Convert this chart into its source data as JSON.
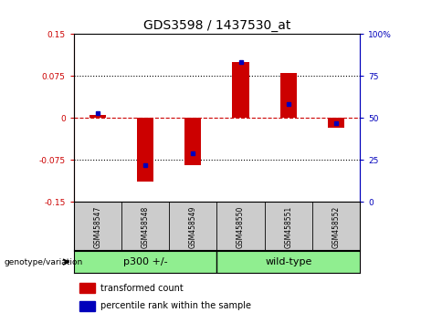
{
  "title": "GDS3598 / 1437530_at",
  "categories": [
    "GSM458547",
    "GSM458548",
    "GSM458549",
    "GSM458550",
    "GSM458551",
    "GSM458552"
  ],
  "red_values": [
    0.005,
    -0.113,
    -0.085,
    0.1,
    0.08,
    -0.018
  ],
  "blue_values_pct": [
    53,
    22,
    29,
    83,
    58,
    47
  ],
  "groups": [
    {
      "label": "p300 +/-",
      "span": [
        0,
        2
      ]
    },
    {
      "label": "wild-type",
      "span": [
        3,
        5
      ]
    }
  ],
  "ylim_left": [
    -0.15,
    0.15
  ],
  "ylim_right": [
    0,
    100
  ],
  "yticks_left": [
    -0.15,
    -0.075,
    0,
    0.075,
    0.15
  ],
  "ytick_labels_left": [
    "-0.15",
    "-0.075",
    "0",
    "0.075",
    "0.15"
  ],
  "yticks_right": [
    0,
    25,
    50,
    75,
    100
  ],
  "ytick_labels_right": [
    "0",
    "25",
    "50",
    "75",
    "100%"
  ],
  "bar_width": 0.35,
  "red_color": "#cc0000",
  "blue_color": "#0000bb",
  "genotype_label": "genotype/variation",
  "legend_items": [
    {
      "color": "#cc0000",
      "label": "transformed count"
    },
    {
      "color": "#0000bb",
      "label": "percentile rank within the sample"
    }
  ],
  "group_label_fontsize": 8,
  "tick_label_fontsize": 6.5,
  "sample_label_fontsize": 5.5,
  "title_fontsize": 10,
  "bg_color": "#ffffff",
  "plot_bg_color": "#ffffff",
  "group_bg_color": "#90ee90",
  "sample_bg_color": "#cccccc",
  "left_axis_color": "#cc0000",
  "right_axis_color": "#0000bb",
  "hline0_color": "#cc0000",
  "hline0_style": "--",
  "hline_grid_color": "black",
  "hline_grid_style": ":",
  "hline_grid_lw": 0.8,
  "hline0_lw": 0.8
}
